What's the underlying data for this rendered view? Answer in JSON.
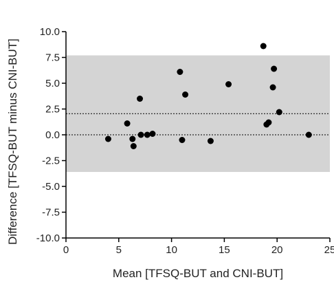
{
  "chart_data": {
    "type": "scatter",
    "xlabel": "Mean [TFSQ-BUT and CNI-BUT]",
    "ylabel": "Difference [TFSQ-BUT minus CNI-BUT]",
    "xlim": [
      0,
      25
    ],
    "ylim": [
      -10,
      10
    ],
    "x_ticks": [
      "0",
      "5",
      "10",
      "15",
      "20",
      "25"
    ],
    "y_ticks": [
      "10.0",
      "7.5",
      "5.0",
      "2.5",
      "0.0",
      "-2.5",
      "-5.0",
      "-7.5",
      "-10.0"
    ],
    "x_tick_values": [
      0,
      5,
      10,
      15,
      20,
      25
    ],
    "y_tick_values": [
      10,
      7.5,
      5,
      2.5,
      0,
      -2.5,
      -5,
      -7.5,
      -10
    ],
    "limits_of_agreement": [
      -3.6,
      7.7
    ],
    "mean_difference": 2.05,
    "zero_line": 0,
    "shade_color": "#d4d4d4",
    "point_color": "#000000",
    "grid": false,
    "points": [
      {
        "x": 4.0,
        "y": -0.4
      },
      {
        "x": 5.8,
        "y": 1.1
      },
      {
        "x": 6.3,
        "y": -0.4
      },
      {
        "x": 6.4,
        "y": -1.1
      },
      {
        "x": 7.0,
        "y": 3.5
      },
      {
        "x": 7.1,
        "y": 0.0
      },
      {
        "x": 7.7,
        "y": 0.0
      },
      {
        "x": 8.2,
        "y": 0.1
      },
      {
        "x": 10.8,
        "y": 6.1
      },
      {
        "x": 11.0,
        "y": -0.5
      },
      {
        "x": 11.3,
        "y": 3.9
      },
      {
        "x": 13.7,
        "y": -0.6
      },
      {
        "x": 15.4,
        "y": 4.9
      },
      {
        "x": 18.7,
        "y": 8.6
      },
      {
        "x": 19.0,
        "y": 1.0
      },
      {
        "x": 19.2,
        "y": 1.2
      },
      {
        "x": 19.6,
        "y": 4.6
      },
      {
        "x": 19.7,
        "y": 6.4
      },
      {
        "x": 20.2,
        "y": 2.2
      },
      {
        "x": 23.0,
        "y": 0.0
      }
    ]
  }
}
